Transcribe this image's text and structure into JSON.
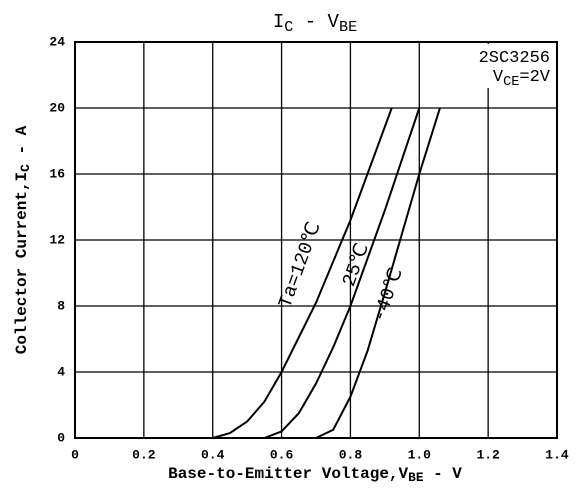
{
  "chart_data": {
    "type": "line",
    "title": [
      {
        "text": "I"
      },
      {
        "text": "C",
        "sub": true
      },
      {
        "text": " - V"
      },
      {
        "text": "BE",
        "sub": true
      }
    ],
    "x_label": [
      {
        "text": "Base-to-Emitter Voltage,V"
      },
      {
        "text": "BE",
        "sub": true
      },
      {
        "text": " - V"
      }
    ],
    "y_label": [
      {
        "text": "Collector Current,I"
      },
      {
        "text": "C",
        "sub": true
      },
      {
        "text": " - A"
      }
    ],
    "annotation": [
      [
        {
          "text": "2SC3256"
        }
      ],
      [
        {
          "text": "V"
        },
        {
          "text": "CE",
          "sub": true
        },
        {
          "text": "=2V"
        }
      ]
    ],
    "xlim": [
      0,
      1.4
    ],
    "ylim": [
      0,
      24
    ],
    "xticks": [
      0,
      0.2,
      0.4,
      0.6,
      0.8,
      {
        "value": 1,
        "label": "1.0"
      },
      1.2,
      1.4
    ],
    "yticks": [
      0,
      4,
      8,
      12,
      16,
      20,
      24
    ],
    "grid": true,
    "series": [
      {
        "name": "Ta=120℃",
        "color": "#000000",
        "x": [
          0,
          0.4,
          0.45,
          0.5,
          0.55,
          0.6,
          0.7,
          0.8,
          0.92
        ],
        "values": [
          0,
          0,
          0.3,
          1,
          2.2,
          4,
          8.2,
          13.2,
          20
        ]
      },
      {
        "name": "25℃",
        "color": "#000000",
        "x": [
          0,
          0.55,
          0.6,
          0.65,
          0.7,
          0.75,
          0.8,
          0.9,
          1.0
        ],
        "values": [
          0,
          0,
          0.4,
          1.5,
          3.3,
          5.5,
          8,
          13.8,
          20
        ]
      },
      {
        "name": "-40℃",
        "color": "#000000",
        "x": [
          0,
          0.7,
          0.75,
          0.8,
          0.85,
          0.9,
          1.0,
          1.06
        ],
        "values": [
          0,
          0,
          0.5,
          2.5,
          5.3,
          8.8,
          16,
          20
        ]
      }
    ]
  }
}
